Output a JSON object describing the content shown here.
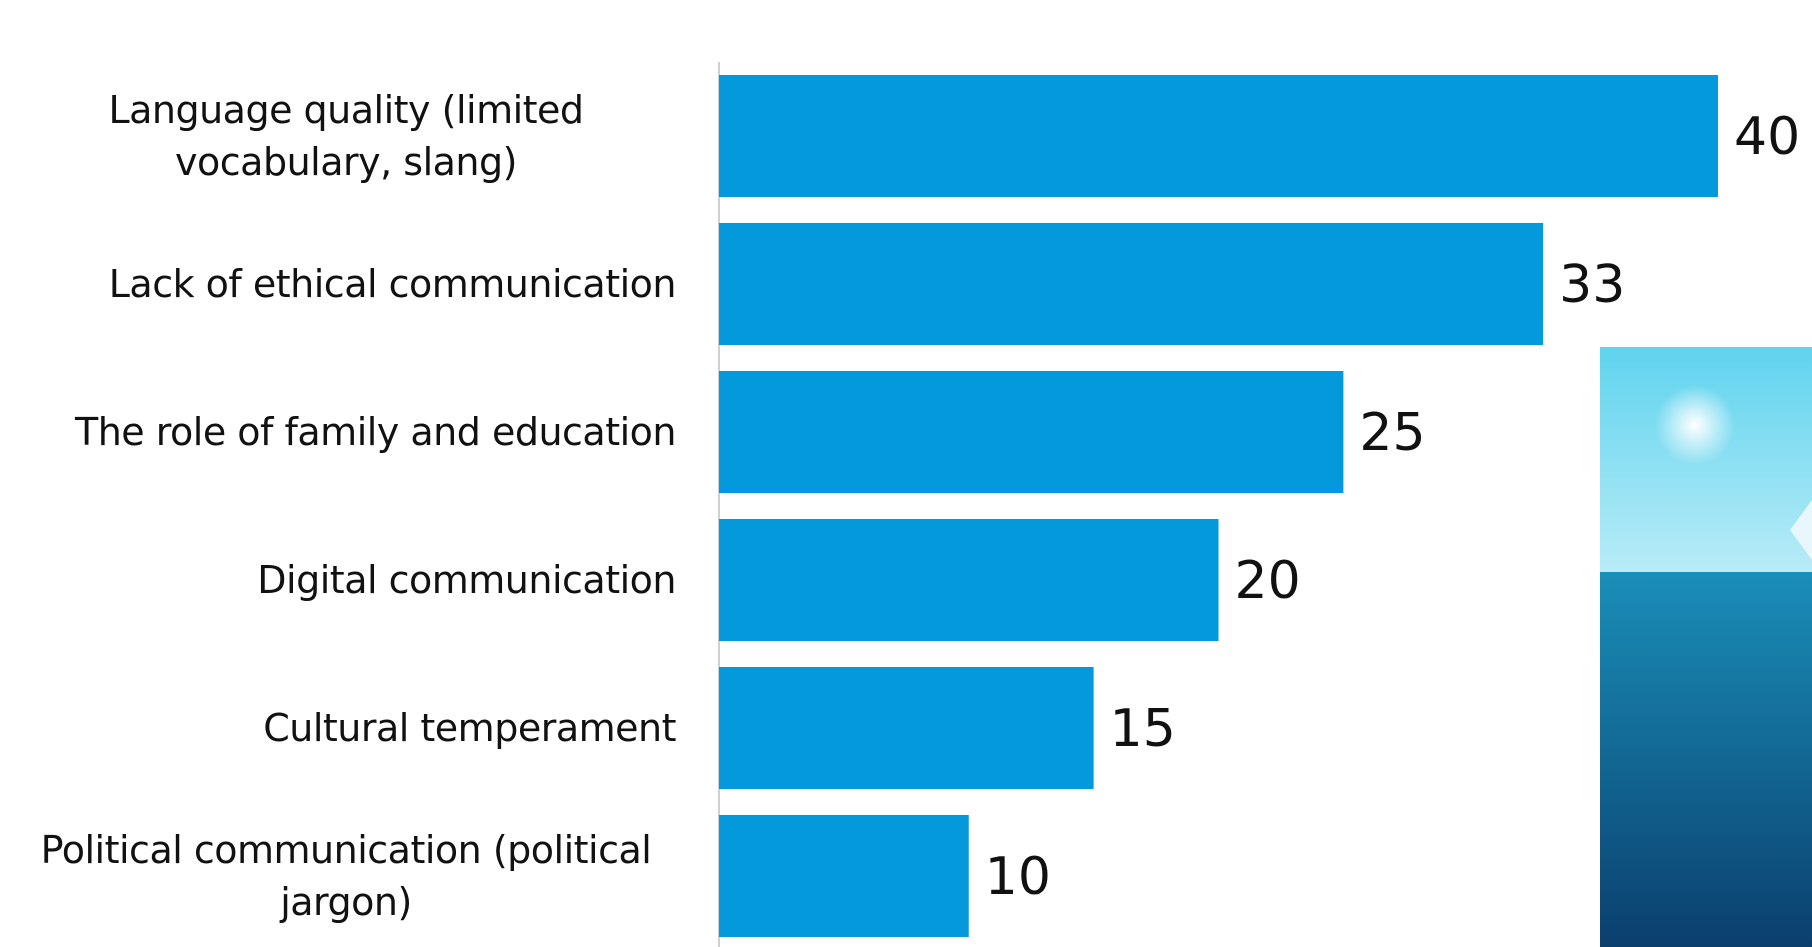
{
  "chart_data": {
    "type": "barh",
    "categories": [
      "Language quality (limited vocabulary, slang)",
      "Lack of ethical communication",
      "The role of family and education",
      "Digital communication",
      "Cultural temperament",
      "Political communication (political jargon)"
    ],
    "values": [
      40,
      33,
      25,
      20,
      15,
      10
    ],
    "color": "#0399db"
  }
}
